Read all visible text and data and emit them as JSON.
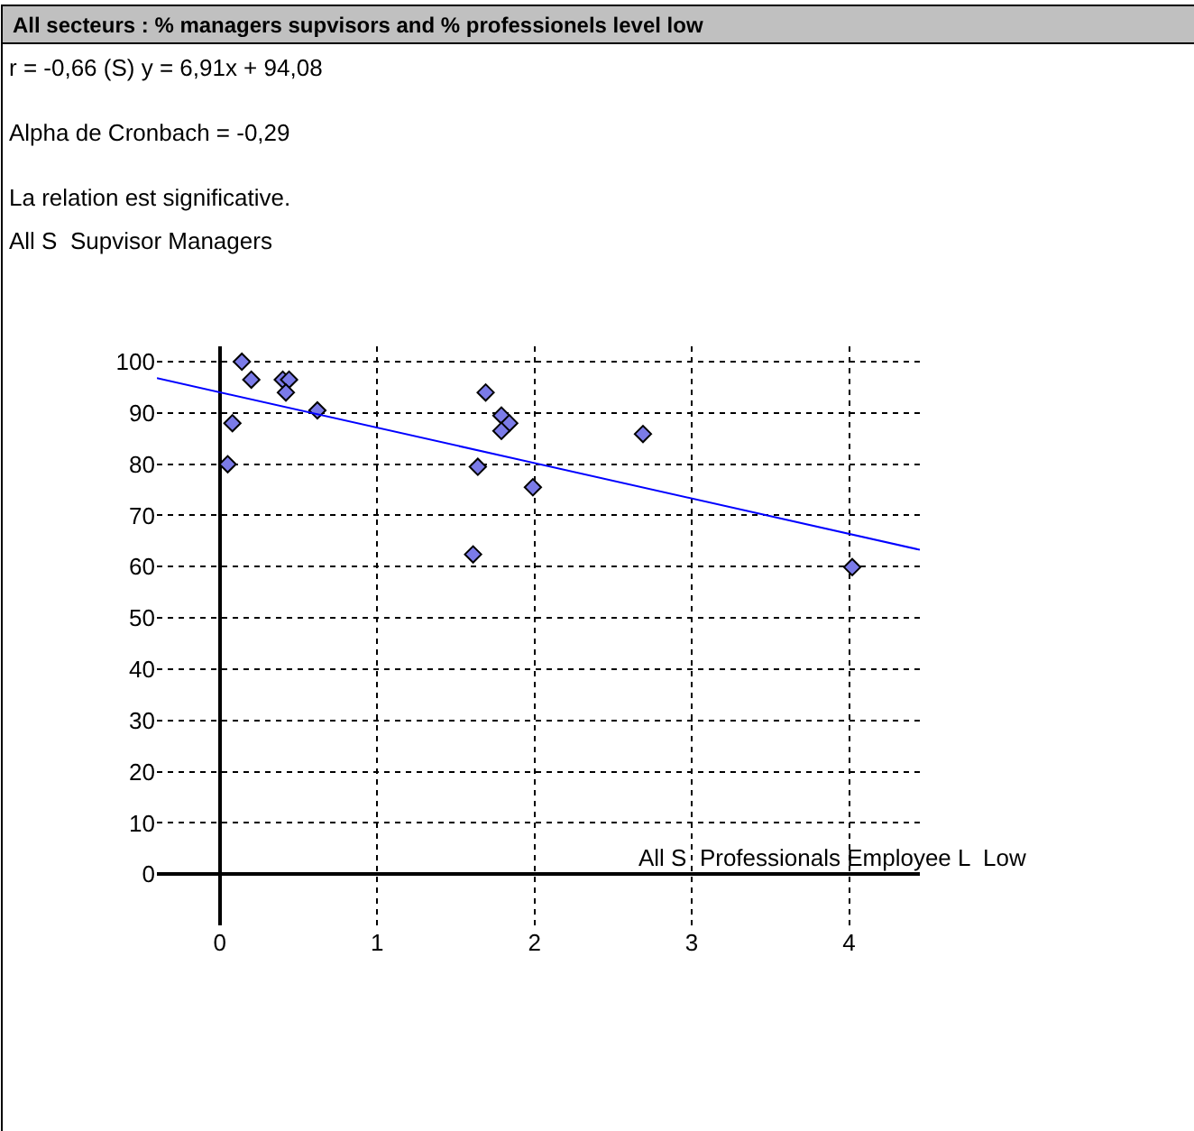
{
  "chart_data": {
    "type": "scatter",
    "title": "All secteurs : % managers supvisors and % professionels level low",
    "annotations": [
      "r = -0,66 (S) y = 6,91x + 94,08",
      "Alpha de Cronbach = -0,29",
      "La relation est significative."
    ],
    "ylabel": "All S  Supvisor Managers",
    "xlabel": "All S  Professionals Employee L  Low",
    "marker": "diamond",
    "series": [
      {
        "color": "#7b7be8",
        "x": [
          0.14,
          0.2,
          0.4,
          0.44,
          0.42,
          0.62,
          0.08,
          0.05,
          1.69,
          1.79,
          1.84,
          1.79,
          1.64,
          1.99,
          1.61,
          2.69,
          4.02
        ],
        "values": [
          100,
          96.5,
          96.5,
          96.5,
          94,
          90.5,
          88,
          80,
          94,
          89.5,
          88,
          86.5,
          79.5,
          75.5,
          62.4,
          85.9,
          59.9
        ]
      },
      {
        "type": "line",
        "marker": "none",
        "color": "#0000ff",
        "x": [
          -0.4,
          4.45
        ],
        "values": [
          96.8,
          63.3
        ]
      }
    ],
    "xlim": [
      -0.4,
      4.45
    ],
    "ylim": [
      -10,
      103
    ],
    "xticks": [
      0,
      1,
      2,
      3,
      4
    ],
    "yticks": [
      0,
      10,
      20,
      30,
      40,
      50,
      60,
      70,
      80,
      90,
      100
    ],
    "grid": true,
    "legend": false
  }
}
